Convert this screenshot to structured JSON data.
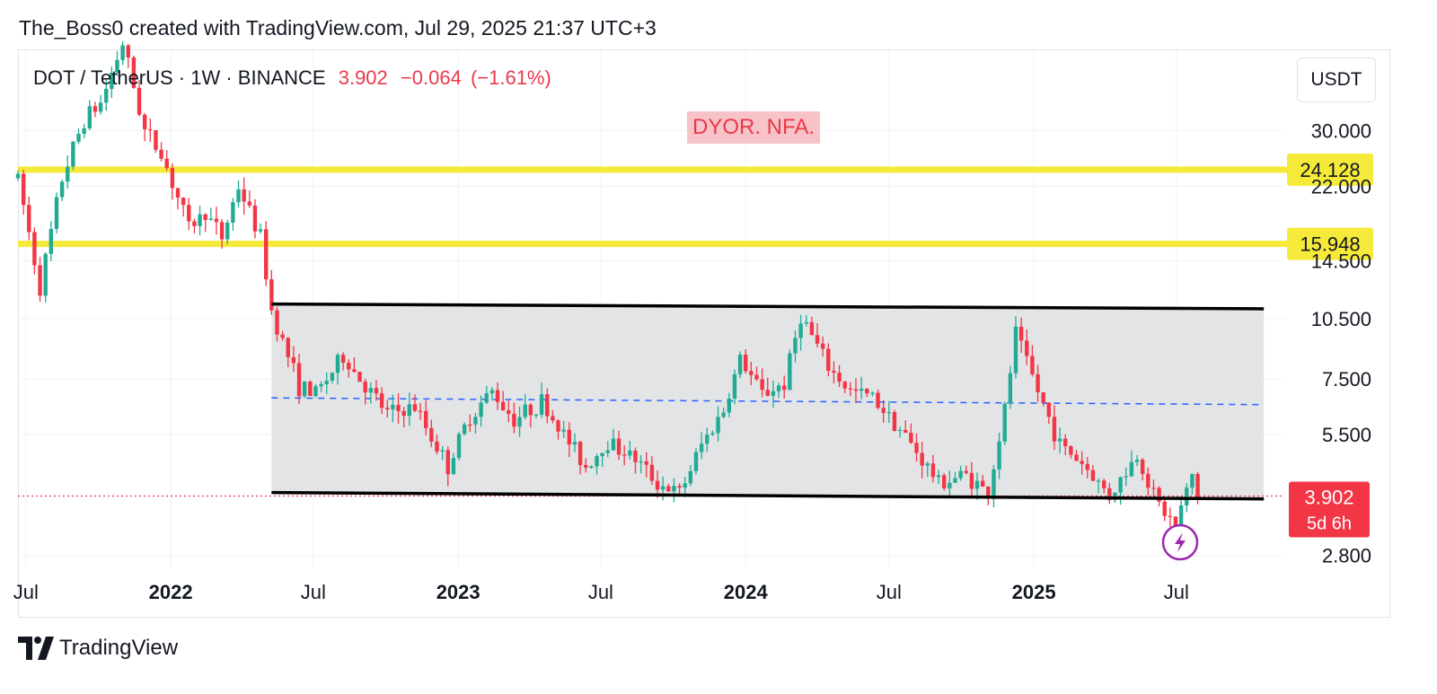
{
  "header": {
    "credit": "The_Boss0 created with TradingView.com, Jul 29, 2025 21:37 UTC+3"
  },
  "symbol": {
    "name": "DOT / TetherUS · 1W · BINANCE",
    "last": "3.902",
    "change": "−0.064",
    "change_pct": "(−1.61%)"
  },
  "annotation": {
    "text": "DYOR. NFA."
  },
  "currency_button": {
    "label": "USDT"
  },
  "footer": {
    "brand": "TradingView"
  },
  "colors": {
    "up": "#22ab94",
    "down": "#f23645",
    "level_line": "#f5ea39",
    "channel": "#000000",
    "channel_fill": "#e3e4e6",
    "midline": "#2962ff",
    "price_tag": "#f23645",
    "level_tag": "#f5ea39"
  },
  "chart_data": {
    "type": "candlestick",
    "x_axis": {
      "range": [
        "2021-06-21",
        "2025-11-15"
      ],
      "ticks": [
        {
          "date": "2021-07-01",
          "label": "Jul",
          "bold": false
        },
        {
          "date": "2022-01-01",
          "label": "2022",
          "bold": true
        },
        {
          "date": "2022-07-01",
          "label": "Jul",
          "bold": false
        },
        {
          "date": "2023-01-01",
          "label": "2023",
          "bold": true
        },
        {
          "date": "2023-07-01",
          "label": "Jul",
          "bold": false
        },
        {
          "date": "2024-01-01",
          "label": "2024",
          "bold": true
        },
        {
          "date": "2024-07-01",
          "label": "Jul",
          "bold": false
        },
        {
          "date": "2025-01-01",
          "label": "2025",
          "bold": true
        },
        {
          "date": "2025-07-01",
          "label": "Jul",
          "bold": false
        }
      ]
    },
    "y_axis": {
      "scale": "log",
      "range": [
        2.62,
        47
      ],
      "ticks": [
        {
          "value": 2.8,
          "label": "2.800"
        },
        {
          "value": 5.5,
          "label": "5.500"
        },
        {
          "value": 7.5,
          "label": "7.500"
        },
        {
          "value": 10.5,
          "label": "10.500"
        },
        {
          "value": 14.5,
          "label": "14.500"
        },
        {
          "value": 22.0,
          "label": "22.000"
        },
        {
          "value": 30.0,
          "label": "30.000"
        }
      ]
    },
    "grid": true,
    "horizontal_levels": [
      {
        "value": 24.128,
        "label": "24.128"
      },
      {
        "value": 15.948,
        "label": "15.948"
      }
    ],
    "channel": {
      "start": "2022-05-09",
      "end": "2025-10-20",
      "top": [
        11.4,
        11.1
      ],
      "bottom": [
        3.98,
        3.84
      ],
      "midline": [
        6.75,
        6.5
      ]
    },
    "current_price": {
      "value": 3.902,
      "label": "3.902",
      "countdown": "5d 6h"
    },
    "anchors": [
      [
        "2021-06-21",
        23.0
      ],
      [
        "2021-07-19",
        12.5
      ],
      [
        "2021-08-16",
        23.0
      ],
      [
        "2021-09-13",
        32.0
      ],
      [
        "2021-10-04",
        35.0
      ],
      [
        "2021-11-01",
        49.0
      ],
      [
        "2021-11-29",
        30.0
      ],
      [
        "2021-12-20",
        26.5
      ],
      [
        "2022-01-24",
        17.5
      ],
      [
        "2022-02-14",
        19.0
      ],
      [
        "2022-03-07",
        16.5
      ],
      [
        "2022-03-28",
        22.0
      ],
      [
        "2022-04-25",
        16.5
      ],
      [
        "2022-05-09",
        11.0
      ],
      [
        "2022-06-13",
        7.2
      ],
      [
        "2022-07-04",
        6.9
      ],
      [
        "2022-08-08",
        8.5
      ],
      [
        "2022-09-05",
        7.2
      ],
      [
        "2022-10-03",
        6.2
      ],
      [
        "2022-11-07",
        6.4
      ],
      [
        "2022-12-19",
        4.6
      ],
      [
        "2023-01-16",
        6.1
      ],
      [
        "2023-02-13",
        7.0
      ],
      [
        "2023-03-13",
        6.0
      ],
      [
        "2023-04-17",
        6.6
      ],
      [
        "2023-05-15",
        5.5
      ],
      [
        "2023-06-12",
        4.6
      ],
      [
        "2023-07-10",
        5.3
      ],
      [
        "2023-08-14",
        4.8
      ],
      [
        "2023-09-11",
        4.2
      ],
      [
        "2023-10-09",
        3.95
      ],
      [
        "2023-11-06",
        5.2
      ],
      [
        "2023-12-04",
        6.3
      ],
      [
        "2023-12-25",
        8.4
      ],
      [
        "2024-01-22",
        6.9
      ],
      [
        "2024-02-19",
        7.3
      ],
      [
        "2024-03-11",
        10.7
      ],
      [
        "2024-04-15",
        8.0
      ],
      [
        "2024-05-13",
        7.0
      ],
      [
        "2024-06-10",
        6.8
      ],
      [
        "2024-07-08",
        5.9
      ],
      [
        "2024-08-05",
        5.0
      ],
      [
        "2024-09-02",
        4.2
      ],
      [
        "2024-10-07",
        4.4
      ],
      [
        "2024-11-04",
        3.95
      ],
      [
        "2024-11-25",
        6.3
      ],
      [
        "2024-12-09",
        9.7
      ],
      [
        "2025-01-06",
        7.0
      ],
      [
        "2025-02-03",
        5.2
      ],
      [
        "2025-03-03",
        4.7
      ],
      [
        "2025-04-07",
        3.9
      ],
      [
        "2025-05-12",
        4.9
      ],
      [
        "2025-06-09",
        3.7
      ],
      [
        "2025-06-30",
        3.3
      ],
      [
        "2025-07-21",
        4.4
      ],
      [
        "2025-07-28",
        3.902
      ]
    ]
  }
}
